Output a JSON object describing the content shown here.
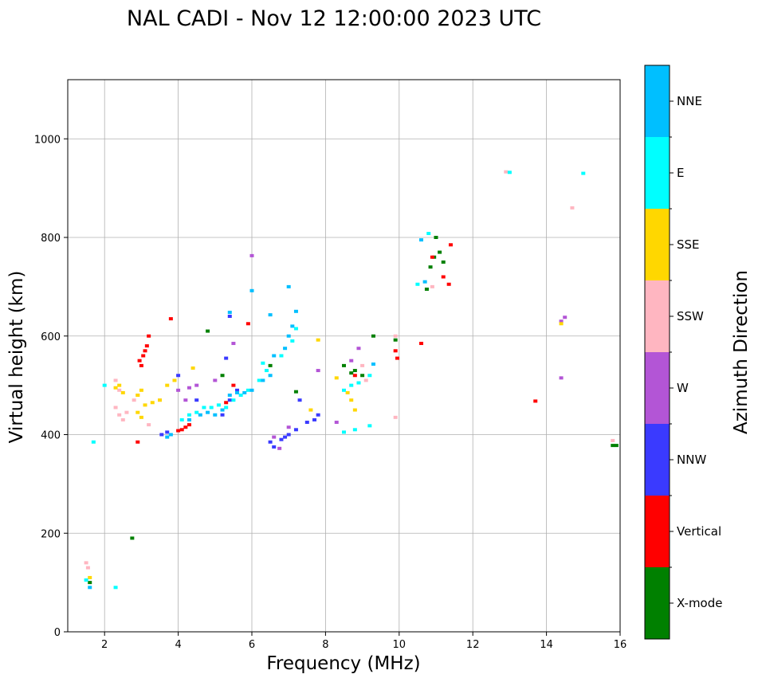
{
  "chart_data": {
    "type": "scatter",
    "title": "NAL CADI - Nov 12 12:00:00 2023 UTC",
    "xlabel": "Frequency (MHz)",
    "ylabel": "Virtual height (km)",
    "xlim": [
      1,
      16
    ],
    "ylim": [
      0,
      1120
    ],
    "xticks": [
      2,
      4,
      6,
      8,
      10,
      12,
      14,
      16
    ],
    "yticks": [
      0,
      200,
      400,
      600,
      800,
      1000
    ],
    "grid": true,
    "colorbar": {
      "label": "Azimuth Direction",
      "categories": [
        "X-mode",
        "Vertical",
        "NNW",
        "W",
        "SSW",
        "SSE",
        "E",
        "NNE"
      ],
      "colors": [
        "#008000",
        "#ff0000",
        "#3a3aff",
        "#b355d6",
        "#ffb6c1",
        "#ffd700",
        "#00ffff",
        "#00bfff"
      ]
    },
    "series": [
      {
        "name": "X-mode",
        "points": [
          [
            1.6,
            100
          ],
          [
            2.75,
            190
          ],
          [
            7.2,
            487
          ],
          [
            8.7,
            525
          ],
          [
            8.8,
            530
          ],
          [
            9.0,
            520
          ],
          [
            9.3,
            600
          ],
          [
            9.9,
            592
          ],
          [
            10.75,
            695
          ],
          [
            10.85,
            740
          ],
          [
            10.95,
            760
          ],
          [
            11.1,
            770
          ],
          [
            11.2,
            750
          ],
          [
            11.0,
            800
          ],
          [
            15.8,
            378
          ],
          [
            15.9,
            378
          ],
          [
            4.8,
            610
          ],
          [
            5.2,
            520
          ],
          [
            6.5,
            540
          ],
          [
            8.5,
            540
          ]
        ]
      },
      {
        "name": "Vertical",
        "points": [
          [
            2.95,
            550
          ],
          [
            3.05,
            560
          ],
          [
            3.1,
            570
          ],
          [
            3.2,
            600
          ],
          [
            3.15,
            580
          ],
          [
            3.0,
            540
          ],
          [
            2.9,
            385
          ],
          [
            4.0,
            408
          ],
          [
            4.1,
            410
          ],
          [
            4.2,
            415
          ],
          [
            4.3,
            420
          ],
          [
            3.8,
            635
          ],
          [
            5.3,
            465
          ],
          [
            5.5,
            500
          ],
          [
            5.9,
            625
          ],
          [
            8.8,
            520
          ],
          [
            9.9,
            570
          ],
          [
            9.95,
            555
          ],
          [
            10.6,
            585
          ],
          [
            10.9,
            760
          ],
          [
            11.4,
            785
          ],
          [
            11.35,
            705
          ],
          [
            11.2,
            720
          ],
          [
            13.7,
            468
          ]
        ]
      },
      {
        "name": "NNW",
        "points": [
          [
            3.55,
            400
          ],
          [
            3.7,
            405
          ],
          [
            5.2,
            440
          ],
          [
            5.4,
            470
          ],
          [
            5.6,
            490
          ],
          [
            5.3,
            555
          ],
          [
            5.4,
            640
          ],
          [
            6.5,
            385
          ],
          [
            6.8,
            390
          ],
          [
            6.9,
            395
          ],
          [
            7.0,
            400
          ],
          [
            7.2,
            410
          ],
          [
            7.5,
            425
          ],
          [
            7.7,
            430
          ],
          [
            7.8,
            440
          ],
          [
            4.5,
            470
          ],
          [
            4.0,
            520
          ],
          [
            6.6,
            375
          ],
          [
            7.3,
            470
          ]
        ]
      },
      {
        "name": "W",
        "points": [
          [
            4.0,
            490
          ],
          [
            4.3,
            495
          ],
          [
            4.5,
            500
          ],
          [
            4.2,
            470
          ],
          [
            5.0,
            510
          ],
          [
            5.5,
            585
          ],
          [
            6.6,
            395
          ],
          [
            6.75,
            372
          ],
          [
            8.3,
            425
          ],
          [
            8.7,
            550
          ],
          [
            8.9,
            575
          ],
          [
            14.4,
            630
          ],
          [
            14.5,
            638
          ],
          [
            14.4,
            515
          ],
          [
            6.0,
            763
          ],
          [
            7.8,
            530
          ],
          [
            7.0,
            415
          ]
        ]
      },
      {
        "name": "SSW",
        "points": [
          [
            1.5,
            140
          ],
          [
            1.55,
            130
          ],
          [
            2.3,
            510
          ],
          [
            2.4,
            490
          ],
          [
            2.3,
            455
          ],
          [
            2.4,
            440
          ],
          [
            2.5,
            430
          ],
          [
            2.6,
            445
          ],
          [
            2.8,
            470
          ],
          [
            2.9,
            480
          ],
          [
            3.5,
            470
          ],
          [
            3.2,
            420
          ],
          [
            9.0,
            540
          ],
          [
            9.1,
            510
          ],
          [
            9.9,
            600
          ],
          [
            9.9,
            435
          ],
          [
            10.9,
            700
          ],
          [
            12.9,
            933
          ],
          [
            14.7,
            860
          ],
          [
            15.8,
            388
          ]
        ]
      },
      {
        "name": "SSE",
        "points": [
          [
            2.3,
            495
          ],
          [
            2.4,
            500
          ],
          [
            2.5,
            485
          ],
          [
            2.9,
            480
          ],
          [
            3.0,
            490
          ],
          [
            3.1,
            460
          ],
          [
            3.3,
            465
          ],
          [
            3.5,
            470
          ],
          [
            3.7,
            500
          ],
          [
            3.9,
            510
          ],
          [
            4.4,
            535
          ],
          [
            2.9,
            445
          ],
          [
            3.0,
            435
          ],
          [
            8.3,
            515
          ],
          [
            8.6,
            485
          ],
          [
            8.7,
            470
          ],
          [
            8.8,
            450
          ],
          [
            7.8,
            592
          ],
          [
            14.4,
            625
          ],
          [
            7.6,
            450
          ],
          [
            1.6,
            110
          ]
        ]
      },
      {
        "name": "E",
        "points": [
          [
            1.5,
            105
          ],
          [
            1.7,
            385
          ],
          [
            2.0,
            500
          ],
          [
            2.3,
            90
          ],
          [
            4.1,
            430
          ],
          [
            4.3,
            440
          ],
          [
            4.5,
            445
          ],
          [
            4.7,
            455
          ],
          [
            4.9,
            455
          ],
          [
            5.1,
            460
          ],
          [
            5.3,
            455
          ],
          [
            5.5,
            470
          ],
          [
            5.7,
            480
          ],
          [
            5.9,
            490
          ],
          [
            6.2,
            510
          ],
          [
            6.4,
            530
          ],
          [
            6.8,
            560
          ],
          [
            7.1,
            590
          ],
          [
            8.5,
            490
          ],
          [
            8.7,
            500
          ],
          [
            8.9,
            505
          ],
          [
            9.2,
            520
          ],
          [
            8.5,
            405
          ],
          [
            8.8,
            410
          ],
          [
            9.2,
            418
          ],
          [
            10.5,
            705
          ],
          [
            10.8,
            808
          ],
          [
            13.0,
            932
          ],
          [
            15.0,
            930
          ],
          [
            6.3,
            545
          ],
          [
            7.2,
            615
          ]
        ]
      },
      {
        "name": "NNE",
        "points": [
          [
            1.6,
            90
          ],
          [
            3.7,
            395
          ],
          [
            3.8,
            400
          ],
          [
            4.3,
            430
          ],
          [
            4.6,
            440
          ],
          [
            4.8,
            445
          ],
          [
            5.0,
            440
          ],
          [
            5.2,
            450
          ],
          [
            5.4,
            480
          ],
          [
            5.6,
            485
          ],
          [
            5.8,
            485
          ],
          [
            6.0,
            490
          ],
          [
            6.3,
            510
          ],
          [
            6.5,
            520
          ],
          [
            6.6,
            560
          ],
          [
            6.9,
            575
          ],
          [
            7.0,
            600
          ],
          [
            7.1,
            620
          ],
          [
            7.2,
            650
          ],
          [
            7.0,
            700
          ],
          [
            6.0,
            692
          ],
          [
            6.5,
            643
          ],
          [
            5.4,
            648
          ],
          [
            9.3,
            543
          ],
          [
            10.6,
            795
          ],
          [
            10.7,
            710
          ]
        ]
      }
    ]
  }
}
